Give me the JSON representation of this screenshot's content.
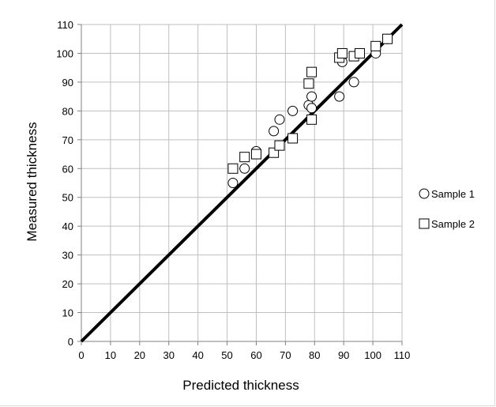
{
  "chart_data": {
    "type": "scatter",
    "xlabel": "Predicted thickness",
    "ylabel": "Measured thickness",
    "xlim": [
      0,
      110
    ],
    "ylim": [
      0,
      110
    ],
    "x_ticks": [
      "0",
      "10",
      "20",
      "30",
      "40",
      "50",
      "60",
      "70",
      "80",
      "90",
      "100",
      "110"
    ],
    "y_ticks": [
      "0",
      "10",
      "20",
      "30",
      "40",
      "50",
      "60",
      "70",
      "80",
      "90",
      "100",
      "110"
    ],
    "grid": true,
    "legend_position": "right",
    "reference_line": {
      "x": [
        0,
        110
      ],
      "y": [
        0,
        110
      ],
      "color": "#000000"
    },
    "series": [
      {
        "name": "Sample 1",
        "marker": "circle",
        "color": "#000000",
        "points": [
          [
            52,
            55
          ],
          [
            56,
            60
          ],
          [
            60,
            66
          ],
          [
            66,
            73
          ],
          [
            68,
            77
          ],
          [
            72.5,
            80
          ],
          [
            78,
            82
          ],
          [
            79,
            85
          ],
          [
            79,
            81
          ],
          [
            88.5,
            85
          ],
          [
            89.5,
            97
          ],
          [
            93.5,
            90
          ],
          [
            101,
            100
          ],
          [
            105,
            105
          ]
        ]
      },
      {
        "name": "Sample 2",
        "marker": "square",
        "color": "#000000",
        "points": [
          [
            52,
            60
          ],
          [
            56,
            64
          ],
          [
            60,
            65
          ],
          [
            66,
            65.5
          ],
          [
            68,
            68
          ],
          [
            72.5,
            70.5
          ],
          [
            78,
            89.5
          ],
          [
            79,
            93.5
          ],
          [
            79,
            77
          ],
          [
            88.5,
            98.5
          ],
          [
            89.5,
            100
          ],
          [
            93.5,
            99
          ],
          [
            95.5,
            100
          ],
          [
            101,
            102.5
          ],
          [
            105,
            105
          ]
        ]
      }
    ]
  }
}
